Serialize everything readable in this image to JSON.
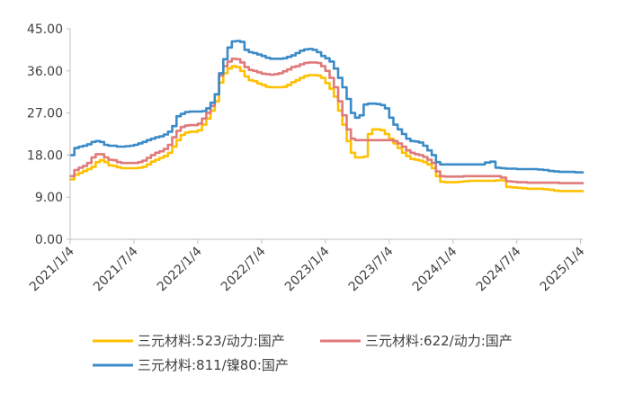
{
  "chart_data": {
    "type": "line",
    "title": "",
    "xlabel": "",
    "ylabel": "",
    "ylim": [
      0,
      45
    ],
    "yticks": [
      0,
      9,
      18,
      27,
      36,
      45
    ],
    "ytick_labels": [
      "0.00",
      "9.00",
      "18.00",
      "27.00",
      "36.00",
      "45.00"
    ],
    "xticks": [
      0,
      6,
      12,
      18,
      24,
      30,
      36,
      42,
      48
    ],
    "xtick_labels": [
      "2021/1/4",
      "2021/7/4",
      "2022/1/4",
      "2022/7/4",
      "2023/1/4",
      "2023/7/4",
      "2024/1/4",
      "2024/7/4",
      "2025/1/4"
    ],
    "x_unit": "months since 2021/1/4",
    "xlim": [
      0,
      48.2
    ],
    "grid": false,
    "legend_position": "bottom",
    "series": [
      {
        "name": "三元材料:523/动力:国产",
        "color": "#FFC000",
        "x": [
          0,
          0.4,
          0.8,
          1.2,
          1.6,
          2,
          2.4,
          2.8,
          3.2,
          3.6,
          4,
          4.4,
          4.8,
          5.2,
          5.6,
          6,
          6.4,
          6.8,
          7.2,
          7.6,
          8,
          8.4,
          8.8,
          9.2,
          9.6,
          10,
          10.4,
          10.8,
          11.2,
          11.6,
          12,
          12.4,
          12.8,
          13.2,
          13.6,
          14,
          14.4,
          14.8,
          15.2,
          15.6,
          16,
          16.4,
          16.8,
          17.2,
          17.6,
          18,
          18.4,
          18.8,
          19.2,
          19.6,
          20,
          20.4,
          20.8,
          21.2,
          21.6,
          22,
          22.4,
          22.8,
          23.2,
          23.6,
          24,
          24.4,
          24.8,
          25.2,
          25.6,
          26,
          26.4,
          26.8,
          27.2,
          27.6,
          28,
          28.4,
          28.8,
          29.2,
          29.6,
          30,
          30.4,
          30.8,
          31.2,
          31.6,
          32,
          32.4,
          32.8,
          33.2,
          33.6,
          34,
          34.4,
          34.8,
          35.2,
          35.6,
          36,
          36.5,
          37,
          37.5,
          38,
          38.5,
          39,
          39.5,
          40,
          40.5,
          41,
          41.5,
          42,
          42.5,
          43,
          43.5,
          44,
          44.5,
          45,
          45.5,
          46,
          46.5,
          47,
          47.5,
          48,
          48.2
        ],
        "values": [
          12.8,
          13.8,
          14.2,
          14.6,
          15.0,
          15.5,
          16.5,
          16.9,
          16.5,
          15.8,
          15.7,
          15.4,
          15.2,
          15.2,
          15.2,
          15.2,
          15.3,
          15.5,
          16.0,
          16.6,
          17.0,
          17.4,
          17.8,
          18.5,
          19.8,
          21.2,
          22.3,
          22.8,
          23.0,
          23.0,
          23.3,
          24.5,
          25.8,
          27.5,
          29.5,
          33.5,
          35.5,
          36.5,
          37.0,
          36.8,
          36.0,
          34.8,
          34.0,
          33.8,
          33.3,
          33.0,
          32.6,
          32.5,
          32.5,
          32.5,
          32.6,
          33.0,
          33.6,
          34.0,
          34.5,
          34.9,
          35.1,
          35.1,
          35.0,
          34.5,
          33.4,
          32.2,
          30.5,
          27.5,
          24.5,
          21.0,
          18.5,
          17.5,
          17.5,
          17.7,
          22.5,
          23.5,
          23.5,
          23.3,
          22.5,
          21.5,
          20.5,
          19.5,
          18.5,
          17.8,
          17.2,
          17.0,
          16.8,
          16.5,
          16.0,
          15.2,
          13.5,
          12.3,
          12.2,
          12.2,
          12.2,
          12.3,
          12.4,
          12.5,
          12.5,
          12.5,
          12.5,
          12.5,
          12.6,
          12.6,
          11.2,
          11.1,
          11.0,
          10.9,
          10.8,
          10.8,
          10.8,
          10.7,
          10.6,
          10.4,
          10.3,
          10.3,
          10.3,
          10.3,
          10.3,
          10.3
        ]
      },
      {
        "name": "三元材料:622/动力:国产",
        "color": "#E07A7A",
        "x": [
          0,
          0.4,
          0.8,
          1.2,
          1.6,
          2,
          2.4,
          2.8,
          3.2,
          3.6,
          4,
          4.4,
          4.8,
          5.2,
          5.6,
          6,
          6.4,
          6.8,
          7.2,
          7.6,
          8,
          8.4,
          8.8,
          9.2,
          9.6,
          10,
          10.4,
          10.8,
          11.2,
          11.6,
          12,
          12.4,
          12.8,
          13.2,
          13.6,
          14,
          14.4,
          14.8,
          15.2,
          15.6,
          16,
          16.4,
          16.8,
          17.2,
          17.6,
          18,
          18.4,
          18.8,
          19.2,
          19.6,
          20,
          20.4,
          20.8,
          21.2,
          21.6,
          22,
          22.4,
          22.8,
          23.2,
          23.6,
          24,
          24.4,
          24.8,
          25.2,
          25.6,
          26,
          26.4,
          26.8,
          27.2,
          27.6,
          28,
          28.4,
          28.8,
          29.2,
          29.6,
          30,
          30.4,
          30.8,
          31.2,
          31.6,
          32,
          32.4,
          32.8,
          33.2,
          33.6,
          34,
          34.4,
          34.8,
          35.2,
          35.6,
          36,
          36.5,
          37,
          37.5,
          38,
          38.5,
          39,
          39.5,
          40,
          40.5,
          41,
          41.5,
          42,
          42.5,
          43,
          43.5,
          44,
          44.5,
          45,
          45.5,
          46,
          46.5,
          47,
          47.5,
          48,
          48.2
        ],
        "values": [
          13.5,
          14.8,
          15.3,
          15.7,
          16.3,
          17.5,
          18.2,
          18.2,
          17.5,
          17.0,
          16.9,
          16.5,
          16.3,
          16.3,
          16.3,
          16.3,
          16.5,
          16.8,
          17.4,
          18.0,
          18.5,
          18.8,
          19.3,
          20.2,
          21.8,
          23.2,
          24.0,
          24.3,
          24.4,
          24.4,
          24.7,
          25.8,
          27.0,
          28.5,
          31.0,
          35.0,
          37.0,
          38.0,
          38.6,
          38.5,
          37.8,
          36.8,
          36.2,
          36.0,
          35.7,
          35.4,
          35.3,
          35.2,
          35.3,
          35.5,
          35.9,
          36.3,
          36.8,
          37.0,
          37.4,
          37.7,
          37.8,
          37.8,
          37.7,
          37.0,
          36.0,
          34.5,
          32.5,
          29.5,
          26.5,
          23.5,
          21.5,
          21.2,
          21.2,
          21.2,
          21.2,
          21.2,
          21.2,
          21.2,
          21.2,
          21.2,
          21.0,
          20.5,
          19.8,
          19.0,
          18.5,
          18.2,
          18.0,
          17.6,
          17.0,
          16.3,
          14.5,
          13.5,
          13.4,
          13.4,
          13.4,
          13.4,
          13.5,
          13.5,
          13.5,
          13.5,
          13.5,
          13.5,
          13.5,
          13.2,
          12.4,
          12.3,
          12.2,
          12.2,
          12.1,
          12.1,
          12.1,
          12.1,
          12.1,
          12.1,
          12.0,
          12.0,
          12.0,
          12.0,
          12.0,
          12.0
        ]
      },
      {
        "name": "三元材料:811/镍80:国产",
        "color": "#3B8BC8",
        "x": [
          0,
          0.4,
          0.8,
          1.2,
          1.6,
          2,
          2.4,
          2.8,
          3.2,
          3.6,
          4,
          4.4,
          4.8,
          5.2,
          5.6,
          6,
          6.4,
          6.8,
          7.2,
          7.6,
          8,
          8.4,
          8.8,
          9.2,
          9.6,
          10,
          10.4,
          10.8,
          11.2,
          11.6,
          12,
          12.4,
          12.8,
          13.2,
          13.6,
          14,
          14.4,
          14.8,
          15.2,
          15.6,
          16,
          16.4,
          16.8,
          17.2,
          17.6,
          18,
          18.4,
          18.8,
          19.2,
          19.6,
          20,
          20.4,
          20.8,
          21.2,
          21.6,
          22,
          22.4,
          22.8,
          23.2,
          23.6,
          24,
          24.4,
          24.8,
          25.2,
          25.6,
          26,
          26.4,
          26.8,
          27.2,
          27.6,
          28,
          28.4,
          28.8,
          29.2,
          29.6,
          30,
          30.4,
          30.8,
          31.2,
          31.6,
          32,
          32.4,
          32.8,
          33.2,
          33.6,
          34,
          34.4,
          34.8,
          35.2,
          35.6,
          36,
          36.5,
          37,
          37.5,
          38,
          38.5,
          39,
          39.5,
          40,
          40.5,
          41,
          41.5,
          42,
          42.5,
          43,
          43.5,
          44,
          44.5,
          45,
          45.5,
          46,
          46.5,
          47,
          47.5,
          48,
          48.2
        ],
        "values": [
          18.0,
          19.5,
          19.8,
          20.0,
          20.3,
          20.8,
          21.0,
          20.8,
          20.2,
          20.0,
          20.0,
          19.8,
          19.8,
          19.9,
          20.0,
          20.2,
          20.5,
          20.8,
          21.2,
          21.5,
          21.8,
          22.0,
          22.4,
          23.0,
          24.2,
          26.3,
          26.8,
          27.2,
          27.3,
          27.3,
          27.3,
          27.4,
          28.0,
          29.2,
          31.0,
          35.5,
          38.5,
          41.0,
          42.3,
          42.4,
          42.2,
          40.5,
          40.0,
          39.8,
          39.5,
          39.2,
          38.8,
          38.6,
          38.6,
          38.6,
          38.7,
          39.0,
          39.3,
          39.8,
          40.3,
          40.6,
          40.7,
          40.5,
          40.0,
          39.2,
          38.7,
          38.0,
          36.5,
          34.5,
          32.5,
          30.0,
          27.0,
          26.0,
          26.5,
          28.8,
          29.0,
          29.0,
          28.9,
          28.7,
          28.0,
          26.0,
          24.5,
          23.5,
          22.5,
          21.5,
          21.0,
          20.9,
          20.7,
          20.0,
          19.0,
          18.0,
          16.5,
          16.0,
          16.0,
          16.0,
          16.0,
          16.0,
          16.0,
          16.0,
          16.0,
          16.0,
          16.4,
          16.6,
          15.3,
          15.2,
          15.1,
          15.1,
          15.0,
          15.0,
          15.0,
          15.0,
          14.9,
          14.8,
          14.6,
          14.5,
          14.4,
          14.4,
          14.4,
          14.3,
          14.3,
          14.3
        ]
      }
    ]
  }
}
